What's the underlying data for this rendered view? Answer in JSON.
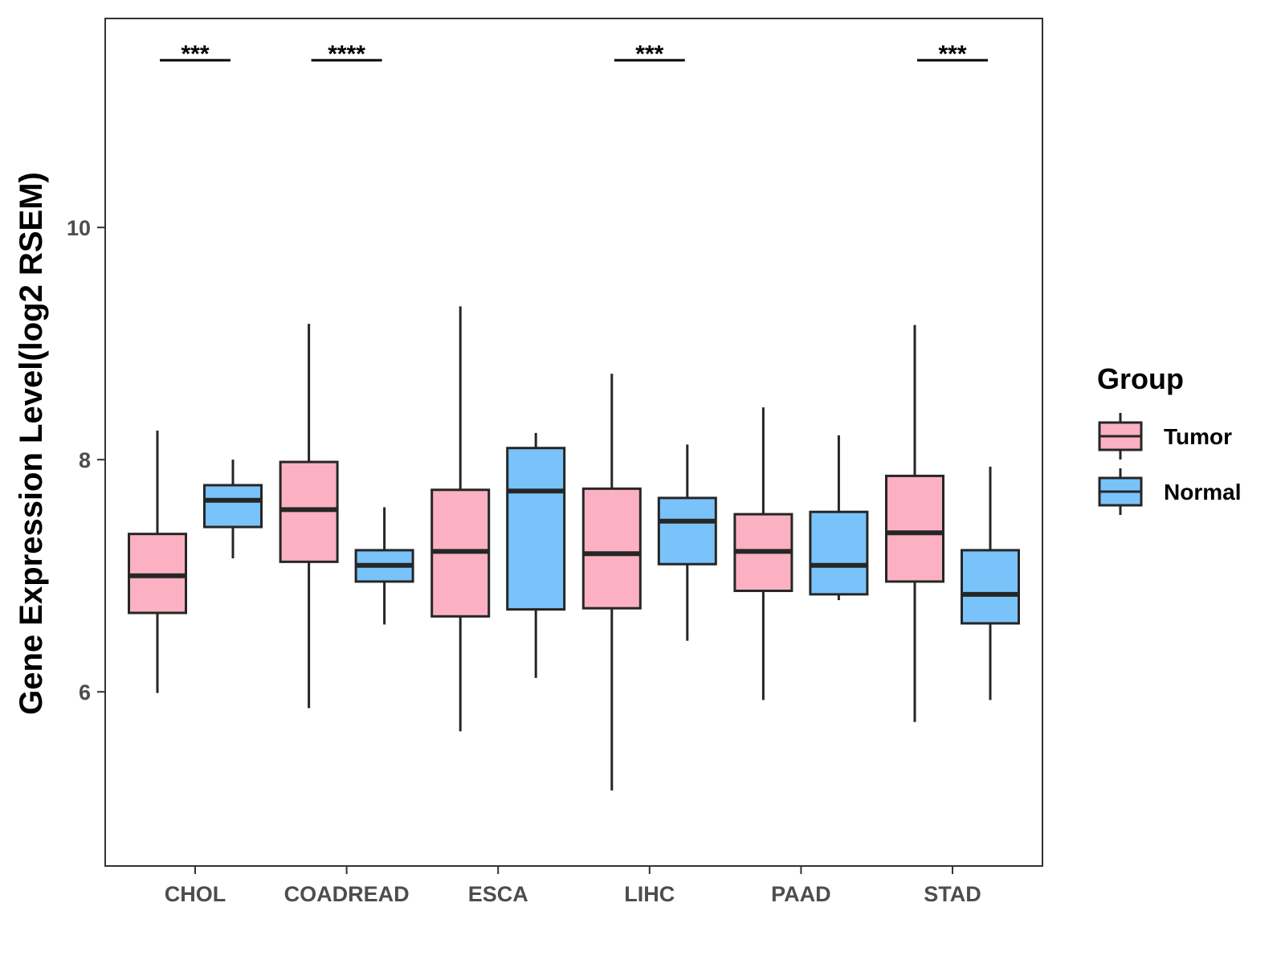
{
  "chart_data": {
    "type": "boxplot",
    "title": "",
    "xlabel": "",
    "ylabel": "Gene Expression Level(log2 RSEM)",
    "ylim": [
      4.5,
      11.8
    ],
    "yticks": [
      6,
      8,
      10
    ],
    "categories": [
      "CHOL",
      "COADREAD",
      "ESCA",
      "LIHC",
      "PAAD",
      "STAD"
    ],
    "colors": {
      "Tumor": "#FBB1C2",
      "Normal": "#79C3FA",
      "stroke": "#262626"
    },
    "legend": {
      "title": "Group",
      "position": "right",
      "entries": [
        "Tumor",
        "Normal"
      ]
    },
    "series": [
      {
        "name": "Tumor",
        "boxes": [
          {
            "category": "CHOL",
            "whisker_low": 5.99,
            "q1": 6.68,
            "median": 7.0,
            "q3": 7.36,
            "whisker_high": 8.25
          },
          {
            "category": "COADREAD",
            "whisker_low": 5.86,
            "q1": 7.12,
            "median": 7.57,
            "q3": 7.98,
            "whisker_high": 9.17
          },
          {
            "category": "ESCA",
            "whisker_low": 5.66,
            "q1": 6.65,
            "median": 7.21,
            "q3": 7.74,
            "whisker_high": 9.32
          },
          {
            "category": "LIHC",
            "whisker_low": 5.15,
            "q1": 6.72,
            "median": 7.19,
            "q3": 7.75,
            "whisker_high": 8.74
          },
          {
            "category": "PAAD",
            "whisker_low": 5.93,
            "q1": 6.87,
            "median": 7.21,
            "q3": 7.53,
            "whisker_high": 8.45
          },
          {
            "category": "STAD",
            "whisker_low": 5.74,
            "q1": 6.95,
            "median": 7.37,
            "q3": 7.86,
            "whisker_high": 9.16
          }
        ]
      },
      {
        "name": "Normal",
        "boxes": [
          {
            "category": "CHOL",
            "whisker_low": 7.15,
            "q1": 7.42,
            "median": 7.65,
            "q3": 7.78,
            "whisker_high": 8.0
          },
          {
            "category": "COADREAD",
            "whisker_low": 6.58,
            "q1": 6.95,
            "median": 7.09,
            "q3": 7.22,
            "whisker_high": 7.59
          },
          {
            "category": "ESCA",
            "whisker_low": 6.12,
            "q1": 6.71,
            "median": 7.73,
            "q3": 8.1,
            "whisker_high": 8.23
          },
          {
            "category": "LIHC",
            "whisker_low": 6.44,
            "q1": 7.1,
            "median": 7.47,
            "q3": 7.67,
            "whisker_high": 8.13
          },
          {
            "category": "PAAD",
            "whisker_low": 6.79,
            "q1": 6.84,
            "median": 7.09,
            "q3": 7.55,
            "whisker_high": 8.21
          },
          {
            "category": "STAD",
            "whisker_low": 5.93,
            "q1": 6.59,
            "median": 6.84,
            "q3": 7.22,
            "whisker_high": 7.94
          }
        ]
      }
    ],
    "annotations": [
      {
        "category": "CHOL",
        "label": "***"
      },
      {
        "category": "COADREAD",
        "label": "****"
      },
      {
        "category": "LIHC",
        "label": "***"
      },
      {
        "category": "STAD",
        "label": "***"
      }
    ]
  }
}
